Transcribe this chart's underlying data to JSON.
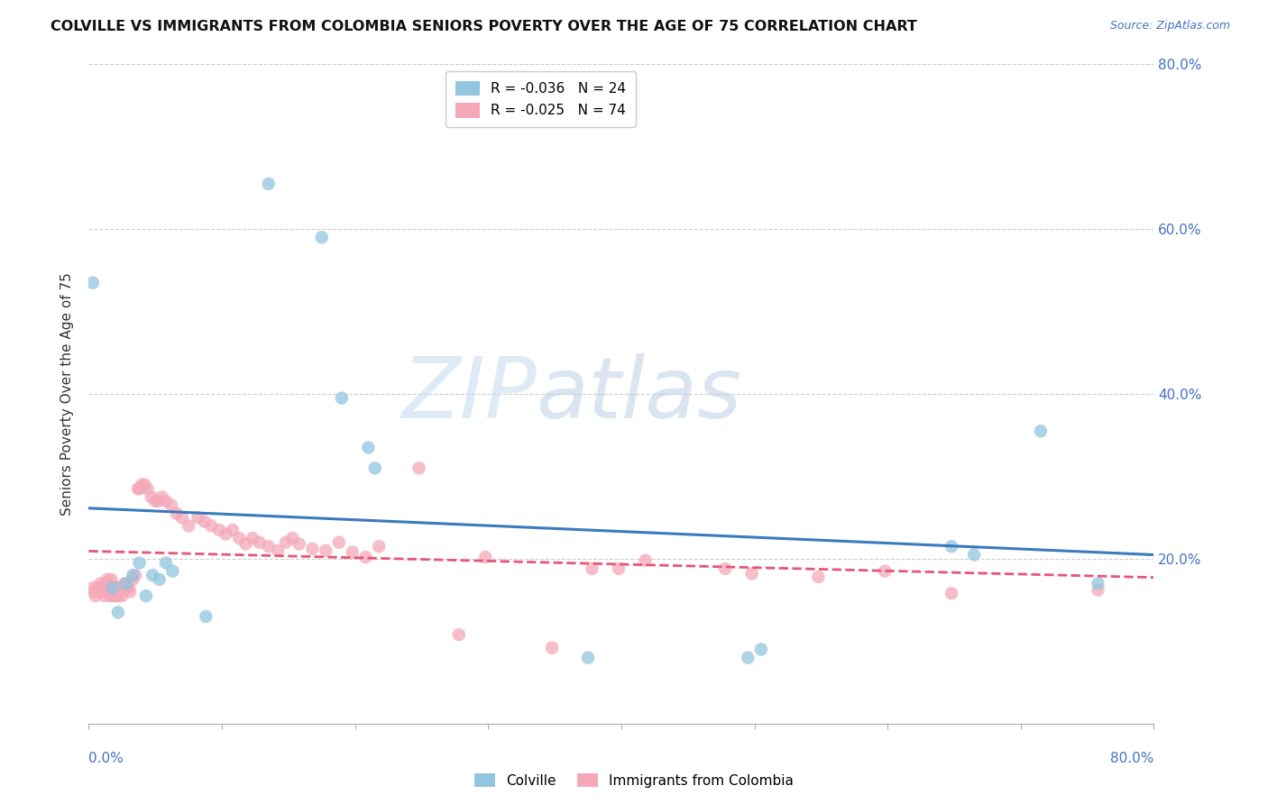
{
  "title": "COLVILLE VS IMMIGRANTS FROM COLOMBIA SENIORS POVERTY OVER THE AGE OF 75 CORRELATION CHART",
  "source": "Source: ZipAtlas.com",
  "ylabel": "Seniors Poverty Over the Age of 75",
  "xlim": [
    0,
    0.8
  ],
  "ylim": [
    0,
    0.8
  ],
  "xtick_vals": [
    0,
    0.1,
    0.2,
    0.3,
    0.4,
    0.5,
    0.6,
    0.7,
    0.8
  ],
  "ytick_vals": [
    0.2,
    0.4,
    0.6,
    0.8
  ],
  "colville_color": "#92c5de",
  "colombia_color": "#f4a8b8",
  "colville_line_color": "#3a7abf",
  "colombia_line_color": "#e8547a",
  "colville_R": -0.036,
  "colville_N": 24,
  "colombia_R": -0.025,
  "colombia_N": 74,
  "colville_x": [
    0.003,
    0.018,
    0.022,
    0.028,
    0.033,
    0.038,
    0.043,
    0.048,
    0.053,
    0.058,
    0.063,
    0.088,
    0.135,
    0.175,
    0.19,
    0.21,
    0.215,
    0.375,
    0.495,
    0.505,
    0.648,
    0.665,
    0.715,
    0.758
  ],
  "colville_y": [
    0.535,
    0.165,
    0.135,
    0.17,
    0.18,
    0.195,
    0.155,
    0.18,
    0.175,
    0.195,
    0.185,
    0.13,
    0.655,
    0.59,
    0.395,
    0.335,
    0.31,
    0.08,
    0.08,
    0.09,
    0.215,
    0.205,
    0.355,
    0.17
  ],
  "colombia_x": [
    0.003,
    0.004,
    0.005,
    0.007,
    0.009,
    0.009,
    0.011,
    0.012,
    0.013,
    0.014,
    0.014,
    0.016,
    0.017,
    0.018,
    0.019,
    0.02,
    0.021,
    0.022,
    0.023,
    0.025,
    0.027,
    0.028,
    0.03,
    0.031,
    0.033,
    0.035,
    0.037,
    0.038,
    0.04,
    0.042,
    0.044,
    0.047,
    0.05,
    0.052,
    0.055,
    0.058,
    0.062,
    0.066,
    0.07,
    0.075,
    0.082,
    0.087,
    0.092,
    0.098,
    0.103,
    0.108,
    0.113,
    0.118,
    0.123,
    0.128,
    0.135,
    0.142,
    0.148,
    0.153,
    0.158,
    0.168,
    0.178,
    0.188,
    0.198,
    0.208,
    0.218,
    0.248,
    0.278,
    0.298,
    0.348,
    0.378,
    0.398,
    0.418,
    0.478,
    0.498,
    0.548,
    0.598,
    0.648,
    0.758
  ],
  "colombia_y": [
    0.165,
    0.16,
    0.155,
    0.165,
    0.16,
    0.17,
    0.165,
    0.155,
    0.17,
    0.165,
    0.175,
    0.155,
    0.175,
    0.155,
    0.165,
    0.155,
    0.165,
    0.155,
    0.165,
    0.155,
    0.17,
    0.165,
    0.165,
    0.16,
    0.175,
    0.18,
    0.285,
    0.285,
    0.29,
    0.29,
    0.285,
    0.275,
    0.27,
    0.27,
    0.275,
    0.27,
    0.265,
    0.255,
    0.25,
    0.24,
    0.25,
    0.245,
    0.24,
    0.235,
    0.23,
    0.235,
    0.225,
    0.218,
    0.225,
    0.22,
    0.215,
    0.21,
    0.22,
    0.225,
    0.218,
    0.212,
    0.21,
    0.22,
    0.208,
    0.202,
    0.215,
    0.31,
    0.108,
    0.202,
    0.092,
    0.188,
    0.188,
    0.198,
    0.188,
    0.182,
    0.178,
    0.185,
    0.158,
    0.162
  ],
  "background_color": "#ffffff",
  "grid_color": "#cccccc",
  "watermark_zip": "ZIP",
  "watermark_atlas": "atlas",
  "bottom_legend": [
    "Colville",
    "Immigrants from Colombia"
  ]
}
